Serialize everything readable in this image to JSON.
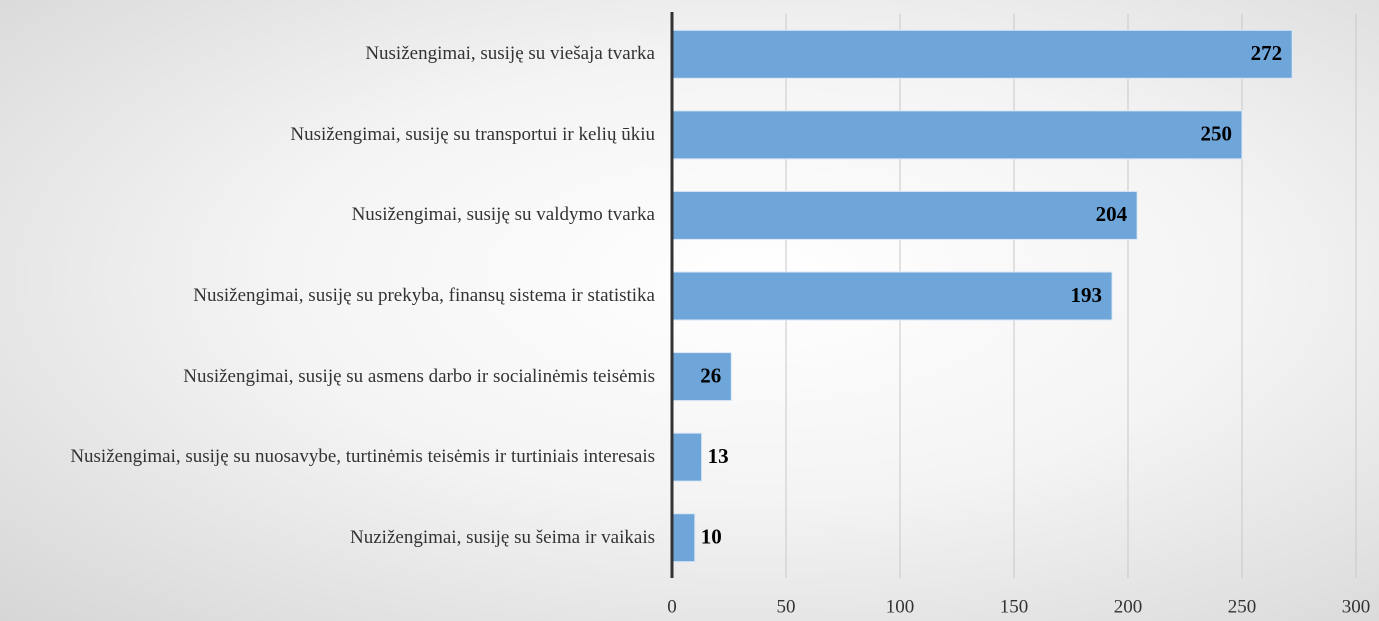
{
  "chart_data": {
    "type": "bar",
    "orientation": "horizontal",
    "categories": [
      "Nusižengimai, susiję su viešaja tvarka",
      "Nusižengimai, susiję su transportui ir kelių ūkiu",
      "Nusižengimai, susiję su valdymo tvarka",
      "Nusižengimai, susiję su prekyba, finansų sistema ir statistika",
      "Nusižengimai, susiję su asmens darbo ir socialinėmis teisėmis",
      "Nusižengimai, susiję su nuosavybe, turtinėmis teisėmis ir turtiniais interesais",
      "Nuzižengimai, susiję su šeima ir vaikais"
    ],
    "values": [
      272,
      250,
      204,
      193,
      26,
      13,
      10
    ],
    "color": "#6fa6da",
    "xlim": [
      0,
      300
    ],
    "xticks": [
      0,
      50,
      100,
      150,
      200,
      250,
      300
    ],
    "grid": true
  }
}
